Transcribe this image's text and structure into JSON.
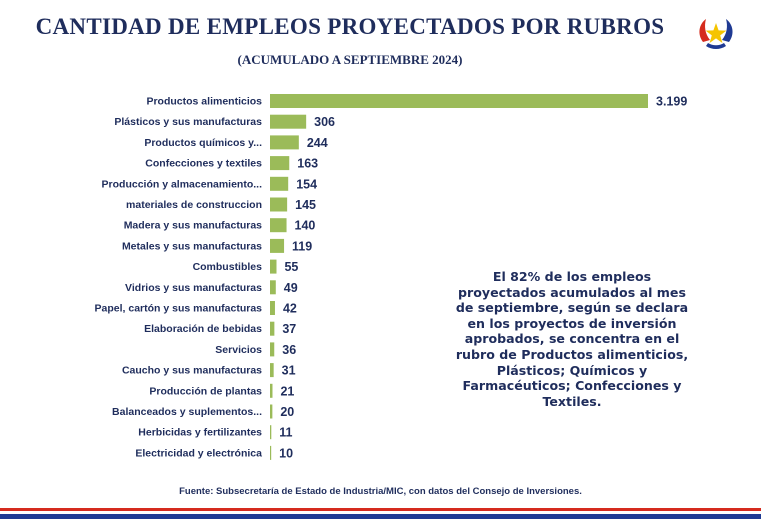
{
  "header": {
    "title": "CANTIDAD DE EMPLEOS PROYECTADOS POR RUBROS",
    "subtitle": "(ACUMULADO A SEPTIEMBRE 2024)"
  },
  "emblem": {
    "icon": "paraguay-emblem-icon",
    "colors": {
      "red": "#d52b1e",
      "blue": "#1f3a93",
      "star": "#f5c400"
    }
  },
  "chart_data": {
    "type": "bar",
    "orientation": "horizontal",
    "title": "CANTIDAD DE EMPLEOS PROYECTADOS POR RUBROS",
    "subtitle": "(ACUMULADO A SEPTIEMBRE 2024)",
    "categories": [
      "Productos alimenticios",
      "Plásticos y sus manufacturas",
      "Productos químicos y...",
      "Confecciones y textiles",
      "Producción y almacenamiento...",
      "materiales de construccion",
      "Madera y sus manufacturas",
      "Metales y sus manufacturas",
      "Combustibles",
      "Vidrios y sus manufacturas",
      "Papel, cartón y sus manufacturas",
      "Elaboración de bebidas",
      "Servicios",
      "Caucho y sus manufacturas",
      "Producción de plantas",
      "Balanceados y suplementos...",
      "Herbicidas y fertilizantes",
      "Electricidad y electrónica"
    ],
    "values": [
      3199,
      306,
      244,
      163,
      154,
      145,
      140,
      119,
      55,
      49,
      42,
      37,
      36,
      31,
      21,
      20,
      11,
      10
    ],
    "value_labels": [
      "3.199",
      "306",
      "244",
      "163",
      "154",
      "145",
      "140",
      "119",
      "55",
      "49",
      "42",
      "37",
      "36",
      "31",
      "21",
      "20",
      "11",
      "10"
    ],
    "bar_color": "#9bbb59",
    "grid": false
  },
  "callout": {
    "text": "El 82% de los empleos proyectados acumulados al mes de septiembre, según se declara en los proyectos de inversión aprobados, se concentra en el rubro de Productos alimenticios, Plásticos; Químicos y Farmacéuticos; Confecciones y Textiles."
  },
  "source": {
    "text": "Fuente: Subsecretaría de Estado de Industria/MIC, con datos del Consejo de Inversiones."
  },
  "colors": {
    "text": "#1f2d5c",
    "stripe_red": "#d52b1e",
    "stripe_blue": "#1f3a93"
  }
}
